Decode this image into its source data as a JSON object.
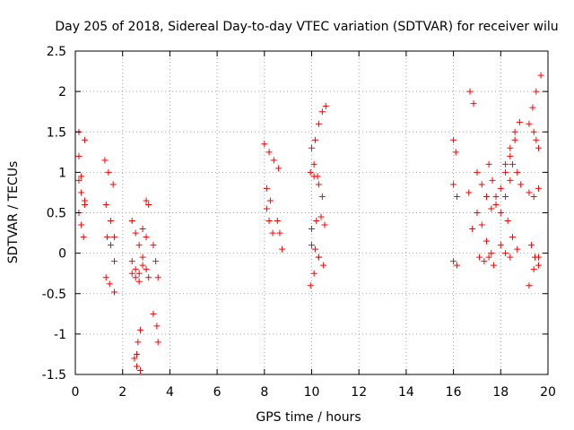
{
  "chart_data": {
    "type": "scatter",
    "title": "Day 205 of 2018, Sidereal Day-to-day VTEC variation (SDTVAR) for receiver wilu",
    "xlabel": "GPS time / hours",
    "ylabel": "SDTVAR / TECUs",
    "xlim": [
      0,
      20
    ],
    "ylim": [
      -1.5,
      2.5
    ],
    "xticks": [
      0,
      2,
      4,
      6,
      8,
      10,
      12,
      14,
      16,
      18,
      20
    ],
    "yticks": [
      -1.5,
      -1,
      -0.5,
      0,
      0.5,
      1,
      1.5,
      2,
      2.5
    ],
    "xtick_labels": [
      "0",
      "2",
      "4",
      "6",
      "8",
      "10",
      "12",
      "14",
      "16",
      "18",
      "20"
    ],
    "ytick_labels": [
      "-1.5",
      "-1",
      "-0.5",
      "0",
      "0.5",
      "1",
      "1.5",
      "2",
      "2.5"
    ],
    "grid": true,
    "marker": "+",
    "series": [
      {
        "name": "SDTVAR",
        "color": "#ff0000",
        "segments": [
          {
            "x": [
              0.15,
              0.4
            ],
            "y": [
              1.5,
              1.4
            ]
          },
          {
            "x": [
              0.15,
              0.25,
              0.4
            ],
            "y": [
              1.2,
              0.95,
              0.65
            ]
          },
          {
            "x": [
              0.15,
              0.25,
              0.4
            ],
            "y": [
              0.9,
              0.75,
              0.6
            ]
          },
          {
            "x": [
              0.15,
              0.25,
              0.35
            ],
            "y": [
              0.5,
              0.35,
              0.2
            ]
          },
          {
            "x": [
              1.25,
              1.4,
              1.6
            ],
            "y": [
              1.15,
              1.0,
              0.85
            ]
          },
          {
            "x": [
              1.3,
              1.5,
              1.65
            ],
            "y": [
              0.6,
              0.4,
              0.2
            ]
          },
          {
            "x": [
              1.35,
              1.5,
              1.65
            ],
            "y": [
              0.2,
              0.1,
              -0.1
            ]
          },
          {
            "x": [
              1.3,
              1.45,
              1.65
            ],
            "y": [
              -0.3,
              -0.38,
              -0.48
            ]
          },
          {
            "x": [
              2.4,
              2.55,
              2.7
            ],
            "y": [
              0.4,
              0.25,
              0.1
            ]
          },
          {
            "x": [
              2.4,
              2.55,
              2.7,
              2.85
            ],
            "y": [
              -0.1,
              -0.2,
              -0.25,
              -0.15
            ]
          },
          {
            "x": [
              2.4,
              2.55,
              2.7
            ],
            "y": [
              -0.25,
              -0.3,
              -0.35
            ]
          },
          {
            "x": [
              2.5,
              2.6,
              2.75
            ],
            "y": [
              -1.3,
              -1.4,
              -1.45
            ]
          },
          {
            "x": [
              2.6,
              2.65,
              2.75
            ],
            "y": [
              -1.25,
              -1.1,
              -0.95
            ]
          },
          {
            "x": [
              2.85,
              3.0
            ],
            "y": [
              0.3,
              0.2
            ]
          },
          {
            "x": [
              2.85,
              3.0,
              3.1
            ],
            "y": [
              -0.05,
              -0.2,
              -0.3
            ]
          },
          {
            "x": [
              3.0,
              3.1
            ],
            "y": [
              0.65,
              0.6
            ]
          },
          {
            "x": [
              3.3,
              3.4,
              3.5
            ],
            "y": [
              0.1,
              -0.1,
              -0.3
            ]
          },
          {
            "x": [
              3.3,
              3.45,
              3.5
            ],
            "y": [
              -0.75,
              -0.9,
              -1.1
            ]
          },
          {
            "x": [
              8.0,
              8.2,
              8.4,
              8.6
            ],
            "y": [
              1.35,
              1.25,
              1.15,
              1.05
            ]
          },
          {
            "x": [
              8.1,
              8.25
            ],
            "y": [
              0.8,
              0.65
            ]
          },
          {
            "x": [
              8.1,
              8.2,
              8.35
            ],
            "y": [
              0.55,
              0.4,
              0.25
            ]
          },
          {
            "x": [
              8.55,
              8.65,
              8.75
            ],
            "y": [
              0.4,
              0.25,
              0.05
            ]
          },
          {
            "x": [
              10.0,
              10.1,
              10.25
            ],
            "y": [
              1.3,
              1.1,
              0.95
            ]
          },
          {
            "x": [
              9.95,
              10.1,
              10.3,
              10.45
            ],
            "y": [
              1.0,
              0.95,
              0.85,
              0.7
            ]
          },
          {
            "x": [
              10.15,
              10.3,
              10.45,
              10.6
            ],
            "y": [
              1.4,
              1.6,
              1.75,
              1.82
            ]
          },
          {
            "x": [
              10.0,
              10.2,
              10.4,
              10.55
            ],
            "y": [
              0.3,
              0.4,
              0.45,
              0.35
            ]
          },
          {
            "x": [
              10.0,
              10.15,
              10.3
            ],
            "y": [
              0.1,
              0.05,
              -0.05
            ]
          },
          {
            "x": [
              9.95,
              10.1,
              10.3,
              10.5
            ],
            "y": [
              -0.4,
              -0.25,
              -0.05,
              -0.15
            ]
          },
          {
            "x": [
              16.0,
              16.1
            ],
            "y": [
              1.4,
              1.25
            ]
          },
          {
            "x": [
              16.0,
              16.15
            ],
            "y": [
              0.85,
              0.7
            ]
          },
          {
            "x": [
              16.0,
              16.15
            ],
            "y": [
              -0.1,
              -0.15
            ]
          },
          {
            "x": [
              16.7,
              16.85
            ],
            "y": [
              2.0,
              1.85
            ]
          },
          {
            "x": [
              16.65,
              16.8
            ],
            "y": [
              0.75,
              0.3
            ]
          },
          {
            "x": [
              17.0,
              17.2,
              17.4,
              17.6
            ],
            "y": [
              1.0,
              0.85,
              0.7,
              0.55
            ]
          },
          {
            "x": [
              17.0,
              17.2,
              17.4,
              17.6
            ],
            "y": [
              0.5,
              0.35,
              0.15,
              0.0
            ]
          },
          {
            "x": [
              17.1,
              17.3,
              17.5,
              17.7
            ],
            "y": [
              -0.05,
              -0.1,
              -0.05,
              -0.15
            ]
          },
          {
            "x": [
              17.5,
              17.65,
              17.8
            ],
            "y": [
              1.1,
              0.9,
              0.6
            ]
          },
          {
            "x": [
              17.8,
              18.0,
              18.2,
              18.4,
              18.6
            ],
            "y": [
              0.7,
              0.8,
              1.0,
              1.2,
              1.4
            ]
          },
          {
            "x": [
              18.2,
              18.4,
              18.6,
              18.8
            ],
            "y": [
              1.1,
              1.3,
              1.5,
              1.62
            ]
          },
          {
            "x": [
              18.0,
              18.2,
              18.4
            ],
            "y": [
              0.5,
              0.7,
              0.9
            ]
          },
          {
            "x": [
              18.3,
              18.5,
              18.7
            ],
            "y": [
              0.4,
              0.2,
              0.05
            ]
          },
          {
            "x": [
              18.0,
              18.2,
              18.4
            ],
            "y": [
              0.1,
              0.0,
              -0.05
            ]
          },
          {
            "x": [
              18.5,
              18.7,
              18.85
            ],
            "y": [
              1.1,
              1.0,
              0.85
            ]
          },
          {
            "x": [
              19.2,
              19.35,
              19.5,
              19.7
            ],
            "y": [
              1.6,
              1.8,
              2.0,
              2.2
            ]
          },
          {
            "x": [
              19.4,
              19.5,
              19.6
            ],
            "y": [
              1.5,
              1.4,
              1.3
            ]
          },
          {
            "x": [
              19.2,
              19.4,
              19.6
            ],
            "y": [
              0.75,
              0.7,
              0.8
            ]
          },
          {
            "x": [
              19.3,
              19.45,
              19.6
            ],
            "y": [
              0.1,
              -0.05,
              -0.15
            ]
          },
          {
            "x": [
              19.2,
              19.4,
              19.6
            ],
            "y": [
              -0.4,
              -0.2,
              -0.05
            ]
          }
        ]
      }
    ]
  }
}
